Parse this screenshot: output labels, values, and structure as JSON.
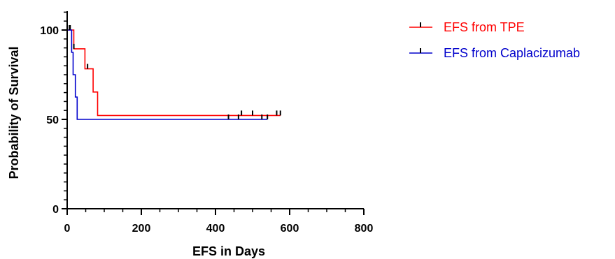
{
  "chart_data": {
    "type": "line",
    "title": "",
    "xlabel": "EFS in Days",
    "ylabel": "Probability of Survival",
    "xlim": [
      0,
      800
    ],
    "ylim": [
      0,
      110
    ],
    "x_ticks": [
      0,
      200,
      400,
      600,
      800
    ],
    "y_ticks": [
      0,
      50,
      100
    ],
    "grid": false,
    "legend_position": "top-right",
    "series": [
      {
        "name": "EFS from TPE",
        "color": "#ff0000",
        "steps": [
          [
            0,
            100
          ],
          [
            18,
            100
          ],
          [
            18,
            89.5
          ],
          [
            48,
            89.5
          ],
          [
            48,
            78.3
          ],
          [
            70,
            78.3
          ],
          [
            70,
            65.3
          ],
          [
            82,
            65.3
          ],
          [
            82,
            52.2
          ],
          [
            575,
            52.2
          ]
        ],
        "censor_x": [
          8,
          18,
          55,
          470,
          500,
          565,
          575
        ],
        "censor_y": [
          100,
          89.5,
          78.3,
          52.2,
          52.2,
          52.2,
          52.2
        ]
      },
      {
        "name": "EFS from Caplacizumab",
        "color": "#0000cc",
        "steps": [
          [
            0,
            100
          ],
          [
            12,
            100
          ],
          [
            12,
            87.5
          ],
          [
            16,
            87.5
          ],
          [
            16,
            75
          ],
          [
            22,
            75
          ],
          [
            22,
            62.5
          ],
          [
            27,
            62.5
          ],
          [
            27,
            50
          ],
          [
            540,
            50
          ]
        ],
        "censor_x": [
          6,
          435,
          462,
          525,
          540
        ],
        "censor_y": [
          100,
          50,
          50,
          50,
          50
        ]
      }
    ]
  }
}
